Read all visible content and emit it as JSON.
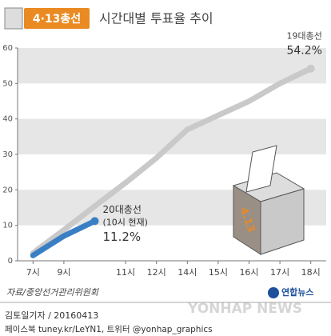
{
  "chart_data": {
    "type": "line",
    "badge": "4·13총선",
    "title": "시간대별 투표율 추이",
    "categories": [
      "7시",
      "9시",
      null,
      "11시",
      "12시",
      "14시",
      "15시",
      "16시",
      "17시",
      "18시"
    ],
    "series": [
      {
        "name": "19대총선",
        "color": "#c9c9c9",
        "values": [
          2.2,
          8.7,
          15.4,
          22,
          29,
          37,
          41,
          45,
          50,
          54.2
        ],
        "value_labels": [
          null,
          null,
          null,
          null,
          null,
          null,
          null,
          null,
          null,
          "54.2%"
        ]
      },
      {
        "name": "20대총선",
        "color": "#3a7fc4",
        "values": [
          1.5,
          7.0,
          11.2,
          null,
          null,
          null,
          null,
          null,
          null,
          null
        ],
        "value_labels": [
          null,
          null,
          "11.2%",
          null,
          null,
          null,
          null,
          null,
          null,
          null
        ]
      }
    ],
    "annotation": "(10시 현재)",
    "ylim": [
      0,
      60
    ],
    "yticks": [
      0,
      10,
      20,
      30,
      40,
      50,
      60
    ],
    "bands": true,
    "ballot_label": "4.13",
    "source": "자료/중앙선거관리위원회",
    "credit": "김토일기자 / 20160413",
    "social": "페이스북 tuney.kr/LeYN1, 트위터 @yonhap_graphics",
    "watermark": "YONHAP NEWS",
    "logo": "연합뉴스"
  }
}
